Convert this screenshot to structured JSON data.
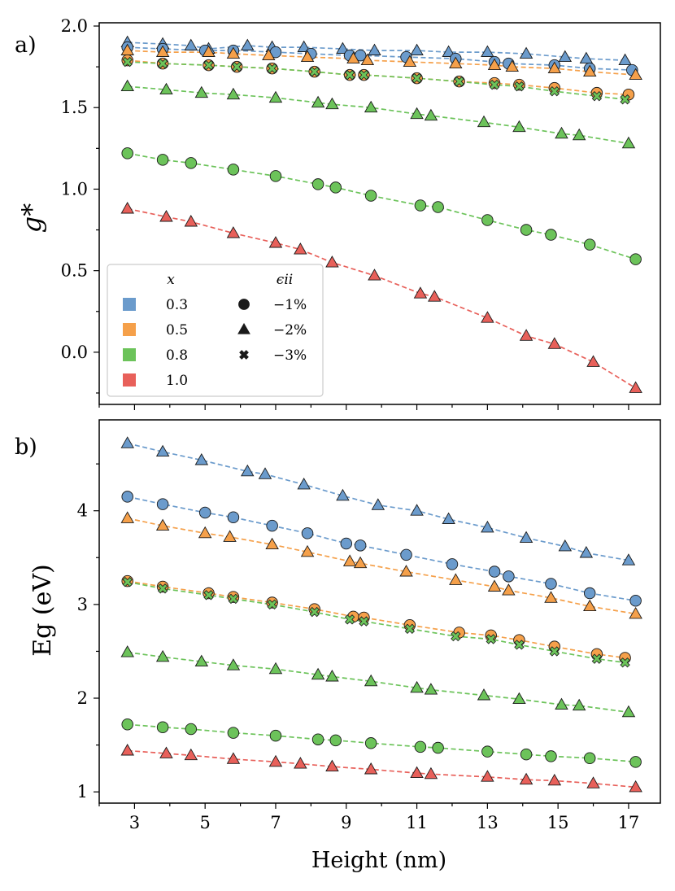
{
  "chart_data": [
    {
      "type": "scatter",
      "panel": "a)",
      "xlabel": "Height (nm)",
      "ylabel": "g*",
      "xlim": [
        2.0,
        17.9
      ],
      "ylim": [
        -0.32,
        2.02
      ],
      "xticks": [
        3,
        5,
        7,
        9,
        11,
        13,
        15,
        17
      ],
      "yticks": [
        0.0,
        0.5,
        1.0,
        1.5,
        2.0
      ],
      "ytick_labels": [
        "0.0",
        "0.5",
        "1.0",
        "1.5",
        "2.0"
      ],
      "grid": false,
      "legend": {
        "placement": "lower-left",
        "color_header": "x",
        "marker_header": "ϵii",
        "colors": [
          {
            "label": "0.3",
            "color": "#6b9bcc"
          },
          {
            "label": "0.5",
            "color": "#f5a04a"
          },
          {
            "label": "0.8",
            "color": "#6cc35a"
          },
          {
            "label": "1.0",
            "color": "#e8605a"
          }
        ],
        "markers": [
          {
            "label": "−1%",
            "marker": "circle"
          },
          {
            "label": "−2%",
            "marker": "triangle"
          },
          {
            "label": "−3%",
            "marker": "cross"
          }
        ]
      },
      "series": [
        {
          "x_value": "0.3",
          "strain": "−2%",
          "color": "#6b9bcc",
          "marker": "triangle",
          "x": [
            2.8,
            3.8,
            4.6,
            5.1,
            6.2,
            6.9,
            7.8,
            8.9,
            9.8,
            11.0,
            11.9,
            13.0,
            14.1,
            15.2,
            15.8,
            16.9
          ],
          "y": [
            1.9,
            1.89,
            1.88,
            1.86,
            1.88,
            1.87,
            1.87,
            1.86,
            1.85,
            1.85,
            1.84,
            1.84,
            1.83,
            1.81,
            1.8,
            1.79
          ]
        },
        {
          "x_value": "0.3",
          "strain": "−1%",
          "color": "#6b9bcc",
          "marker": "circle",
          "x": [
            2.8,
            3.8,
            5.0,
            5.8,
            7.0,
            8.0,
            9.1,
            9.4,
            10.7,
            12.1,
            13.2,
            13.6,
            14.9,
            15.9,
            17.1
          ],
          "y": [
            1.87,
            1.86,
            1.85,
            1.85,
            1.84,
            1.83,
            1.82,
            1.82,
            1.81,
            1.8,
            1.78,
            1.77,
            1.76,
            1.74,
            1.73
          ]
        },
        {
          "x_value": "0.5",
          "strain": "−2%",
          "color": "#f5a04a",
          "marker": "triangle",
          "x": [
            2.8,
            3.8,
            5.1,
            5.8,
            6.8,
            7.9,
            9.2,
            9.6,
            10.8,
            12.1,
            13.2,
            13.7,
            14.9,
            15.9,
            17.2
          ],
          "y": [
            1.85,
            1.84,
            1.84,
            1.83,
            1.82,
            1.81,
            1.8,
            1.79,
            1.78,
            1.77,
            1.76,
            1.75,
            1.74,
            1.72,
            1.7
          ]
        },
        {
          "x_value": "0.5",
          "strain": "−1%",
          "color": "#f5a04a",
          "marker": "circle",
          "x": [
            2.8,
            3.8,
            5.1,
            5.9,
            6.9,
            8.1,
            9.1,
            9.5,
            11.0,
            12.2,
            13.2,
            13.9,
            14.9,
            16.1,
            17.0
          ],
          "y": [
            1.79,
            1.77,
            1.76,
            1.75,
            1.74,
            1.72,
            1.7,
            1.7,
            1.68,
            1.66,
            1.65,
            1.64,
            1.62,
            1.59,
            1.58
          ]
        },
        {
          "x_value": "0.8",
          "strain": "−3%",
          "color": "#6cc35a",
          "marker": "cross",
          "x": [
            2.8,
            3.8,
            5.1,
            5.9,
            6.9,
            8.1,
            9.1,
            9.5,
            11.0,
            12.2,
            13.2,
            13.9,
            14.9,
            16.1,
            16.9
          ],
          "y": [
            1.78,
            1.77,
            1.76,
            1.75,
            1.74,
            1.72,
            1.7,
            1.7,
            1.68,
            1.66,
            1.64,
            1.63,
            1.6,
            1.57,
            1.55
          ]
        },
        {
          "x_value": "0.8",
          "strain": "−2%",
          "color": "#6cc35a",
          "marker": "triangle",
          "x": [
            2.8,
            3.9,
            4.9,
            5.8,
            7.0,
            8.2,
            8.6,
            9.7,
            11.0,
            11.4,
            12.9,
            13.9,
            15.1,
            15.6,
            17.0
          ],
          "y": [
            1.63,
            1.61,
            1.59,
            1.58,
            1.56,
            1.53,
            1.52,
            1.5,
            1.46,
            1.45,
            1.41,
            1.38,
            1.34,
            1.33,
            1.28
          ]
        },
        {
          "x_value": "0.8",
          "strain": "−1%",
          "color": "#6cc35a",
          "marker": "circle",
          "x": [
            2.8,
            3.8,
            4.6,
            5.8,
            7.0,
            8.2,
            8.7,
            9.7,
            11.1,
            11.6,
            13.0,
            14.1,
            14.8,
            15.9,
            17.2
          ],
          "y": [
            1.22,
            1.18,
            1.16,
            1.12,
            1.08,
            1.03,
            1.01,
            0.96,
            0.9,
            0.89,
            0.81,
            0.75,
            0.72,
            0.66,
            0.57
          ]
        },
        {
          "x_value": "1.0",
          "strain": "−2%",
          "color": "#e8605a",
          "marker": "triangle",
          "x": [
            2.8,
            3.9,
            4.6,
            5.8,
            7.0,
            7.7,
            8.6,
            9.8,
            11.1,
            11.5,
            13.0,
            14.1,
            14.9,
            16.0,
            17.2
          ],
          "y": [
            0.88,
            0.83,
            0.8,
            0.73,
            0.67,
            0.63,
            0.55,
            0.47,
            0.36,
            0.34,
            0.21,
            0.1,
            0.05,
            -0.06,
            -0.22
          ]
        }
      ]
    },
    {
      "type": "scatter",
      "panel": "b)",
      "xlabel": "Height (nm)",
      "ylabel": "Eg (eV)",
      "xlim": [
        2.0,
        17.9
      ],
      "ylim": [
        0.88,
        4.97
      ],
      "xticks": [
        3,
        5,
        7,
        9,
        11,
        13,
        15,
        17
      ],
      "yticks": [
        1,
        2,
        3,
        4
      ],
      "ytick_labels": [
        "1",
        "2",
        "3",
        "4"
      ],
      "grid": false,
      "series": [
        {
          "x_value": "0.3",
          "strain": "−2%",
          "color": "#6b9bcc",
          "marker": "triangle",
          "x": [
            2.8,
            3.8,
            4.9,
            6.2,
            6.7,
            7.8,
            8.9,
            9.9,
            11.0,
            11.9,
            13.0,
            14.1,
            15.2,
            15.8,
            17.0
          ],
          "y": [
            4.72,
            4.63,
            4.54,
            4.42,
            4.39,
            4.28,
            4.16,
            4.06,
            4.0,
            3.91,
            3.82,
            3.71,
            3.62,
            3.55,
            3.47
          ]
        },
        {
          "x_value": "0.3",
          "strain": "−1%",
          "color": "#6b9bcc",
          "marker": "circle",
          "x": [
            2.8,
            3.8,
            5.0,
            5.8,
            6.9,
            7.9,
            9.0,
            9.4,
            10.7,
            12.0,
            13.2,
            13.6,
            14.8,
            15.9,
            17.2
          ],
          "y": [
            4.15,
            4.07,
            3.98,
            3.93,
            3.84,
            3.76,
            3.65,
            3.63,
            3.53,
            3.43,
            3.35,
            3.3,
            3.22,
            3.12,
            3.04
          ]
        },
        {
          "x_value": "0.5",
          "strain": "−2%",
          "color": "#f5a04a",
          "marker": "triangle",
          "x": [
            2.8,
            3.8,
            5.0,
            5.7,
            6.9,
            7.9,
            9.1,
            9.4,
            10.7,
            12.1,
            13.2,
            13.6,
            14.8,
            15.9,
            17.2
          ],
          "y": [
            3.92,
            3.84,
            3.76,
            3.72,
            3.64,
            3.56,
            3.46,
            3.44,
            3.35,
            3.26,
            3.19,
            3.15,
            3.07,
            2.98,
            2.9
          ]
        },
        {
          "x_value": "0.5",
          "strain": "−1%",
          "color": "#f5a04a",
          "marker": "circle",
          "x": [
            2.8,
            3.8,
            5.1,
            5.8,
            6.9,
            8.1,
            9.2,
            9.5,
            10.8,
            12.2,
            13.1,
            13.9,
            14.9,
            16.1,
            16.9
          ],
          "y": [
            3.25,
            3.19,
            3.12,
            3.08,
            3.02,
            2.95,
            2.87,
            2.86,
            2.78,
            2.7,
            2.67,
            2.62,
            2.55,
            2.47,
            2.43
          ]
        },
        {
          "x_value": "0.8",
          "strain": "−3%",
          "color": "#6cc35a",
          "marker": "cross",
          "x": [
            2.8,
            3.8,
            5.1,
            5.8,
            6.9,
            8.1,
            9.1,
            9.5,
            10.8,
            12.1,
            13.1,
            13.9,
            14.9,
            16.1,
            16.9
          ],
          "y": [
            3.24,
            3.17,
            3.1,
            3.06,
            3.0,
            2.92,
            2.84,
            2.82,
            2.74,
            2.66,
            2.63,
            2.57,
            2.5,
            2.42,
            2.38
          ]
        },
        {
          "x_value": "0.8",
          "strain": "−2%",
          "color": "#6cc35a",
          "marker": "triangle",
          "x": [
            2.8,
            3.8,
            4.9,
            5.8,
            7.0,
            8.2,
            8.6,
            9.7,
            11.0,
            11.4,
            12.9,
            13.9,
            15.1,
            15.6,
            17.0
          ],
          "y": [
            2.49,
            2.44,
            2.39,
            2.35,
            2.31,
            2.25,
            2.23,
            2.18,
            2.11,
            2.09,
            2.03,
            1.99,
            1.93,
            1.92,
            1.85
          ]
        },
        {
          "x_value": "0.8",
          "strain": "−1%",
          "color": "#6cc35a",
          "marker": "circle",
          "x": [
            2.8,
            3.8,
            4.6,
            5.8,
            7.0,
            8.2,
            8.7,
            9.7,
            11.1,
            11.6,
            13.0,
            14.1,
            14.8,
            15.9,
            17.2
          ],
          "y": [
            1.72,
            1.69,
            1.67,
            1.63,
            1.6,
            1.56,
            1.55,
            1.52,
            1.48,
            1.47,
            1.43,
            1.4,
            1.38,
            1.36,
            1.32
          ]
        },
        {
          "x_value": "1.0",
          "strain": "−2%",
          "color": "#e8605a",
          "marker": "triangle",
          "x": [
            2.8,
            3.9,
            4.6,
            5.8,
            7.0,
            7.7,
            8.6,
            9.7,
            11.0,
            11.4,
            13.0,
            14.1,
            14.9,
            16.0,
            17.2
          ],
          "y": [
            1.44,
            1.41,
            1.39,
            1.35,
            1.32,
            1.3,
            1.27,
            1.24,
            1.2,
            1.19,
            1.16,
            1.13,
            1.12,
            1.09,
            1.05
          ]
        }
      ]
    }
  ]
}
